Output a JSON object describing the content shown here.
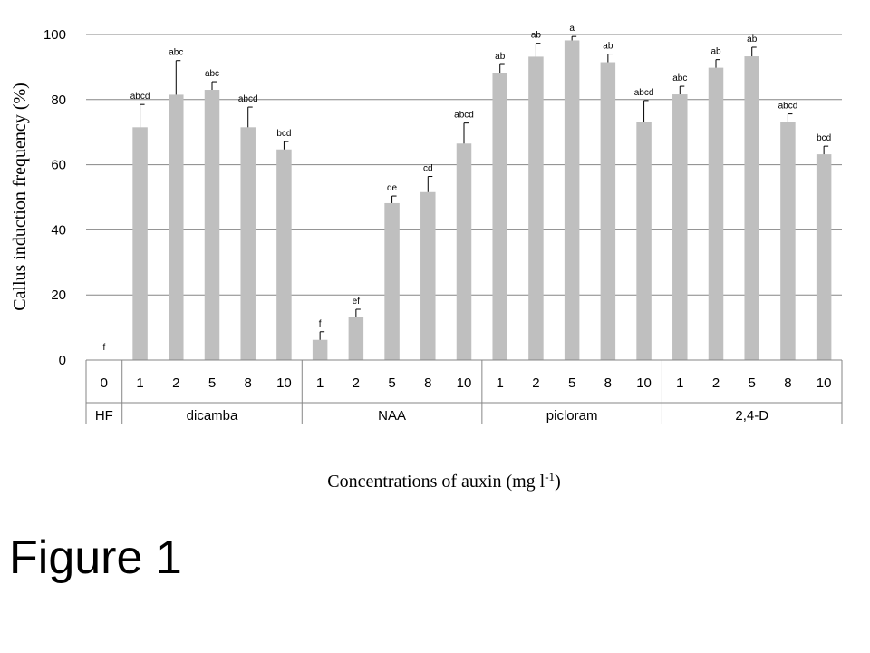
{
  "figure_caption": "Figure 1",
  "chart_data": {
    "type": "bar",
    "title": "",
    "ylabel": "Callus induction frequency (%)",
    "xlabel_text": "Concentrations of auxin (mg l",
    "xlabel_superscript": "-1",
    "xlabel_close": ")",
    "ylim": [
      0,
      100
    ],
    "yticks": [
      0,
      20,
      40,
      60,
      80,
      100
    ],
    "grid": true,
    "bar_color": "#bfbfbf",
    "groups": [
      {
        "name": "HF",
        "concentrations": [
          "0"
        ],
        "values": [
          0
        ],
        "errors": [
          0
        ],
        "letters": [
          "f"
        ]
      },
      {
        "name": "dicamba",
        "concentrations": [
          "1",
          "2",
          "5",
          "8",
          "10"
        ],
        "values": [
          71.5,
          81.5,
          83,
          71.5,
          64.7
        ],
        "errors": [
          7,
          10.5,
          2.5,
          6.2,
          2.4
        ],
        "letters": [
          "abcd",
          "abc",
          "abc",
          "abcd",
          "bcd"
        ]
      },
      {
        "name": "NAA",
        "concentrations": [
          "1",
          "2",
          "5",
          "8",
          "10"
        ],
        "values": [
          6.2,
          13.3,
          48.2,
          51.6,
          66.5
        ],
        "errors": [
          2.5,
          2.3,
          2.2,
          4.8,
          6.3
        ],
        "letters": [
          "f",
          "ef",
          "de",
          "cd",
          "abcd"
        ]
      },
      {
        "name": "picloram",
        "concentrations": [
          "1",
          "2",
          "5",
          "8",
          "10"
        ],
        "values": [
          88.3,
          93.2,
          98.2,
          91.5,
          73.2
        ],
        "errors": [
          2.5,
          4.1,
          1.2,
          2.5,
          6.5
        ],
        "letters": [
          "ab",
          "ab",
          "a",
          "ab",
          "abcd"
        ]
      },
      {
        "name": "2,4-D",
        "concentrations": [
          "1",
          "2",
          "5",
          "8",
          "10"
        ],
        "values": [
          81.6,
          89.8,
          93.3,
          73.2,
          63.2
        ],
        "errors": [
          2.5,
          2.5,
          2.8,
          2.4,
          2.5
        ],
        "letters": [
          "abc",
          "ab",
          "ab",
          "abcd",
          "bcd"
        ]
      }
    ]
  }
}
